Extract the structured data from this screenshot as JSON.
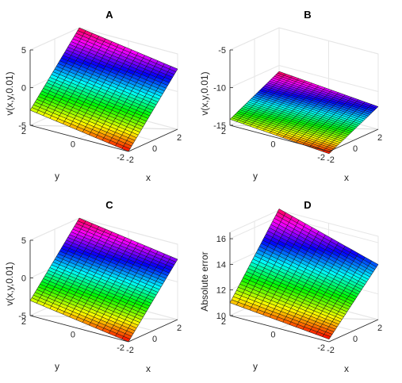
{
  "chart_data": [
    {
      "type": "surface",
      "title": "A",
      "xlabel": "x",
      "ylabel": "y",
      "zlabel": "v(x,y,0.01)",
      "xlim": [
        -2,
        2
      ],
      "ylim": [
        -2,
        2
      ],
      "zlim": [
        -5,
        5
      ],
      "xticks": [
        "-2",
        "0",
        "2"
      ],
      "yticks": [
        "-2",
        "0",
        "2"
      ],
      "zticks": [
        "-5",
        "0",
        "5"
      ],
      "surface": {
        "z_at_corners": {
          "x-2_y2": -3.0,
          "x-2_y-2": -5.0,
          "x2_y2": 5.0,
          "x2_y-2": 3.0
        }
      },
      "grid": true
    },
    {
      "type": "surface",
      "title": "B",
      "xlabel": "x",
      "ylabel": "y",
      "zlabel": "v(x,y,0.01)",
      "xlim": [
        -2,
        2
      ],
      "ylim": [
        -2,
        2
      ],
      "zlim": [
        -15,
        -5
      ],
      "xticks": [
        "-2",
        "0",
        "2"
      ],
      "yticks": [
        "-2",
        "0",
        "2"
      ],
      "zticks": [
        "-15",
        "-10",
        "-5"
      ],
      "surface": {
        "z_at_corners": {
          "x-2_y2": -14.2,
          "x-2_y-2": -15.3,
          "x2_y2": -10.8,
          "x2_y-2": -12.0
        }
      },
      "grid": true
    },
    {
      "type": "surface",
      "title": "C",
      "xlabel": "x",
      "ylabel": "y",
      "zlabel": "v(x,y,0.01)",
      "xlim": [
        -2,
        2
      ],
      "ylim": [
        -2,
        2
      ],
      "zlim": [
        -5,
        5
      ],
      "xticks": [
        "-2",
        "0",
        "2"
      ],
      "yticks": [
        "-2",
        "0",
        "2"
      ],
      "zticks": [
        "-5",
        "0",
        "5"
      ],
      "surface": {
        "z_at_corners": {
          "x-2_y2": -3.0,
          "x-2_y-2": -5.0,
          "x2_y2": 5.0,
          "x2_y-2": 3.0
        }
      },
      "grid": true
    },
    {
      "type": "surface",
      "title": "D",
      "xlabel": "x",
      "ylabel": "y",
      "zlabel": "Absolute error",
      "xlim": [
        -2,
        2
      ],
      "ylim": [
        -2,
        2
      ],
      "zlim": [
        10,
        16.5
      ],
      "xticks": [
        "-2",
        "0",
        "2"
      ],
      "yticks": [
        "-2",
        "0",
        "2"
      ],
      "zticks": [
        "10",
        "12",
        "14",
        "16"
      ],
      "surface": {
        "z_at_corners": {
          "x-2_y2": 11.0,
          "x-2_y-2": 10.2,
          "x2_y2": 16.6,
          "x2_y-2": 14.3
        }
      },
      "grid": true
    }
  ]
}
